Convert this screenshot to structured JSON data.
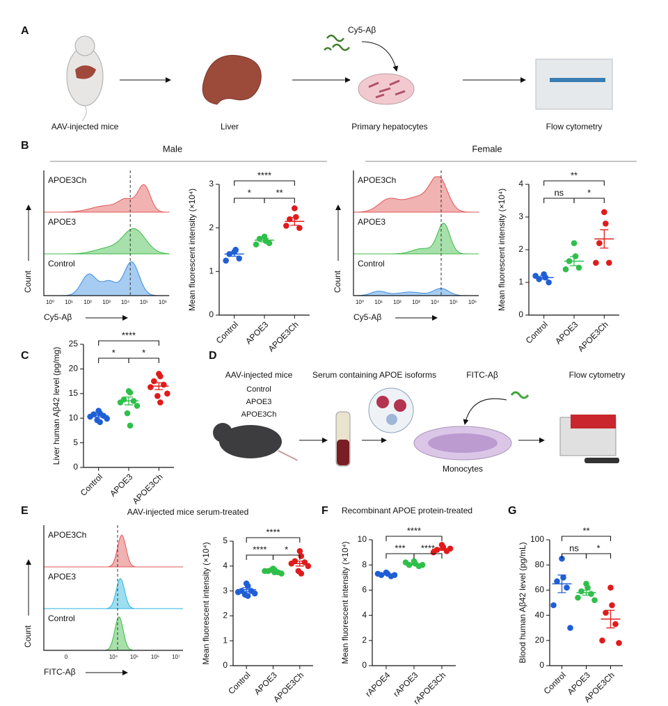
{
  "figure": {
    "panel_labels": {
      "a": "A",
      "b": "B",
      "c": "C",
      "d": "D",
      "e": "E",
      "f": "F",
      "g": "G"
    },
    "panel_a": {
      "steps": [
        "AAV-injected mice",
        "Liver",
        "Primary hepatocytes",
        "Flow cytometry"
      ],
      "probe": "Cy5-Aβ"
    },
    "panel_b": {
      "male": "Male",
      "female": "Female"
    },
    "panel_d": {
      "mice": "AAV-injected mice",
      "groups": [
        "Control",
        "APOE3",
        "APOE3Ch"
      ],
      "serum": "Serum containing APOE isoforms",
      "probe": "FITC-Aβ",
      "readout": "Flow cytometry",
      "cells": "Monocytes"
    },
    "panel_e_title": "AAV-injected mice serum-treated",
    "panel_f_title": "Recombinant APOE protein-treated"
  },
  "histograms": [
    {
      "tracks": [
        {
          "name": "APOE3Ch",
          "color": "#e05555"
        },
        {
          "name": "APOE3",
          "color": "#3cba45"
        },
        {
          "name": "Control",
          "color": "#3b8de0"
        }
      ],
      "ylabel": "Count",
      "xlabel": "Cy5-Aβ",
      "xtick_labels": [
        "10⁰",
        "10¹",
        "10²",
        "10³",
        "10⁴",
        "10⁵",
        "10⁶"
      ]
    },
    {
      "tracks": [
        {
          "name": "APOE3Ch",
          "color": "#e05555"
        },
        {
          "name": "APOE3",
          "color": "#3cba45"
        },
        {
          "name": "Control",
          "color": "#3b8de0"
        }
      ],
      "ylabel": "Count",
      "xlabel": "Cy5-Aβ",
      "xtick_labels": [
        "10⁰",
        "10¹",
        "10²",
        "10³",
        "10⁴",
        "10⁵",
        "10⁶"
      ]
    },
    {
      "tracks": [
        {
          "name": "APOE3Ch",
          "color": "#e05555"
        },
        {
          "name": "APOE3",
          "color": "#25b6e0"
        },
        {
          "name": "Control",
          "color": "#3cba45"
        }
      ],
      "ylabel": "Count",
      "xlabel": "FITC-Aβ",
      "xtick_labels": [
        "0",
        "10⁴",
        "10⁵",
        "10⁶",
        "10⁷"
      ]
    }
  ],
  "chart_data": [
    {
      "type": "dotplot",
      "ylabel": "Mean fluorescent intensity (×10⁴)",
      "categories": [
        "Control",
        "APOE3",
        "APOE3Ch"
      ],
      "colors": [
        "#1f5fd6",
        "#2fbf4a",
        "#e01b1b"
      ],
      "values": [
        [
          1.45,
          1.5,
          1.4,
          1.3,
          1.25
        ],
        [
          1.8,
          1.7,
          1.75,
          1.65,
          1.62
        ],
        [
          2.45,
          2.25,
          2.2,
          2.0,
          2.05
        ]
      ],
      "means": [
        1.4,
        1.72,
        2.15
      ],
      "sems": [
        0.05,
        0.04,
        0.09
      ],
      "ylim": [
        0,
        3
      ],
      "yticks": [
        0,
        1,
        2,
        3
      ],
      "comparisons": [
        {
          "pair": [
            "Control",
            "APOE3"
          ],
          "label": "*"
        },
        {
          "pair": [
            "APOE3",
            "APOE3Ch"
          ],
          "label": "**"
        },
        {
          "pair": [
            "Control",
            "APOE3Ch"
          ],
          "label": "****"
        }
      ]
    },
    {
      "type": "dotplot",
      "ylabel": "Mean fluorescent intensity (×10⁴)",
      "categories": [
        "Control",
        "APOE3",
        "APOE3Ch"
      ],
      "colors": [
        "#1f5fd6",
        "#2fbf4a",
        "#e01b1b"
      ],
      "values": [
        [
          1.25,
          1.15,
          1.1,
          1.0,
          1.2
        ],
        [
          2.2,
          1.8,
          1.65,
          1.45,
          1.4
        ],
        [
          3.15,
          2.8,
          2.2,
          1.6,
          1.6
        ]
      ],
      "means": [
        1.15,
        1.65,
        2.33
      ],
      "sems": [
        0.05,
        0.14,
        0.28
      ],
      "ylim": [
        0,
        4
      ],
      "yticks": [
        0,
        1,
        2,
        3,
        4
      ],
      "comparisons": [
        {
          "pair": [
            "Control",
            "APOE3"
          ],
          "label": "ns"
        },
        {
          "pair": [
            "APOE3",
            "APOE3Ch"
          ],
          "label": "*"
        },
        {
          "pair": [
            "Control",
            "APOE3Ch"
          ],
          "label": "**"
        }
      ]
    },
    {
      "type": "dotplot",
      "ylabel": "Liver human Aβ42 level (pg/mg)",
      "categories": [
        "Control",
        "APOE3",
        "APOE3Ch"
      ],
      "colors": [
        "#1f5fd6",
        "#2fbf4a",
        "#e01b1b"
      ],
      "values": [
        [
          11.5,
          11,
          10.8,
          10.5,
          10.3,
          9.9,
          9.6,
          9.2
        ],
        [
          15.5,
          15.2,
          13.8,
          13.5,
          13.2,
          12.5,
          11,
          8.5
        ],
        [
          19,
          18.5,
          17.5,
          16.8,
          16.3,
          15,
          14.5,
          13.2
        ]
      ],
      "means": [
        10.5,
        13.5,
        16.5
      ],
      "sems": [
        0.3,
        0.8,
        0.7
      ],
      "ylim": [
        0,
        25
      ],
      "yticks": [
        0,
        5,
        10,
        15,
        20,
        25
      ],
      "comparisons": [
        {
          "pair": [
            "Control",
            "APOE3"
          ],
          "label": "*"
        },
        {
          "pair": [
            "APOE3",
            "APOE3Ch"
          ],
          "label": "*"
        },
        {
          "pair": [
            "Control",
            "APOE3Ch"
          ],
          "label": "****"
        }
      ]
    },
    {
      "type": "dotplot",
      "ylabel": "Mean fluorescent intensity (×10⁴)",
      "categories": [
        "Control",
        "APOE3",
        "APOE3Ch"
      ],
      "colors": [
        "#1f5fd6",
        "#2fbf4a",
        "#e01b1b"
      ],
      "values": [
        [
          3.3,
          3.2,
          3.0,
          3.0,
          2.95,
          2.9,
          2.85,
          2.8
        ],
        [
          3.9,
          3.85,
          3.8,
          3.75,
          3.8,
          3.7,
          3.85,
          3.75
        ],
        [
          4.6,
          4.4,
          4.2,
          4.15,
          4.1,
          4.0,
          3.8,
          3.7
        ]
      ],
      "means": [
        3.05,
        3.8,
        4.1
      ],
      "sems": [
        0.08,
        0.03,
        0.1
      ],
      "ylim": [
        0,
        5
      ],
      "yticks": [
        0,
        1,
        2,
        3,
        4,
        5
      ],
      "comparisons": [
        {
          "pair": [
            "Control",
            "APOE3"
          ],
          "label": "****"
        },
        {
          "pair": [
            "APOE3",
            "APOE3Ch"
          ],
          "label": "*"
        },
        {
          "pair": [
            "Control",
            "APOE3Ch"
          ],
          "label": "****"
        }
      ]
    },
    {
      "type": "dotplot",
      "ylabel": "Mean fluorescent intensity (×10⁴)",
      "categories": [
        "rAPOE4",
        "rAPOE3",
        "rAPOE3Ch"
      ],
      "colors": [
        "#1f5fd6",
        "#2fbf4a",
        "#e01b1b"
      ],
      "values": [
        [
          7.4,
          7.3,
          7.2,
          7.1,
          7.3,
          7.2
        ],
        [
          8.3,
          8.1,
          8.0,
          7.9,
          8.2,
          8.0
        ],
        [
          9.6,
          9.4,
          9.2,
          9.1,
          9.0,
          9.3
        ]
      ],
      "means": [
        7.25,
        8.05,
        9.25
      ],
      "sems": [
        0.05,
        0.06,
        0.09
      ],
      "ylim": [
        0,
        10
      ],
      "yticks": [
        0,
        2,
        4,
        6,
        8,
        10
      ],
      "comparisons": [
        {
          "pair": [
            "rAPOE4",
            "rAPOE3"
          ],
          "label": "***"
        },
        {
          "pair": [
            "rAPOE3",
            "rAPOE3Ch"
          ],
          "label": "****"
        },
        {
          "pair": [
            "rAPOE4",
            "rAPOE3Ch"
          ],
          "label": "****"
        }
      ]
    },
    {
      "type": "dotplot",
      "ylabel": "Blood human Aβ42 level (pg/mL)",
      "categories": [
        "Control",
        "APOE3",
        "APOE3Ch"
      ],
      "colors": [
        "#1f5fd6",
        "#2fbf4a",
        "#e01b1b"
      ],
      "values": [
        [
          85,
          70,
          67,
          62,
          48,
          30
        ],
        [
          65,
          62,
          59,
          57,
          54,
          52
        ],
        [
          62,
          48,
          42,
          33,
          20,
          18
        ]
      ],
      "means": [
        65,
        58,
        37
      ],
      "sems": [
        7,
        2,
        7
      ],
      "ylim": [
        0,
        100
      ],
      "yticks": [
        0,
        20,
        40,
        60,
        80,
        100
      ],
      "comparisons": [
        {
          "pair": [
            "Control",
            "APOE3"
          ],
          "label": "ns"
        },
        {
          "pair": [
            "APOE3",
            "APOE3Ch"
          ],
          "label": "*"
        },
        {
          "pair": [
            "Control",
            "APOE3Ch"
          ],
          "label": "**"
        }
      ]
    }
  ]
}
